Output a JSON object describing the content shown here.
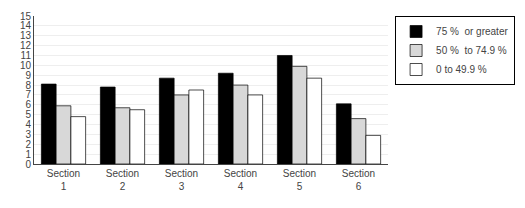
{
  "chart_data": {
    "type": "bar",
    "categories": [
      "Section\n1",
      "Section\n2",
      "Section\n3",
      "Section\n4",
      "Section\n5",
      "Section\n6"
    ],
    "series": [
      {
        "name": "75 %  or greater",
        "color": "#000000",
        "values": [
          8.1,
          7.8,
          8.7,
          9.2,
          11.0,
          6.1
        ]
      },
      {
        "name": "50 %  to 74.9 %",
        "color": "#d8d8d8",
        "values": [
          5.9,
          5.7,
          7.0,
          8.0,
          9.9,
          4.6
        ]
      },
      {
        "name": "0 to 49.9 %",
        "color": "#ffffff",
        "values": [
          4.8,
          5.5,
          7.5,
          7.0,
          8.7,
          2.9
        ]
      }
    ],
    "ylim": [
      0,
      15
    ],
    "yticks": [
      0,
      1,
      2,
      3,
      4,
      5,
      6,
      7,
      8,
      9,
      10,
      11,
      12,
      13,
      14,
      15
    ],
    "grid": true,
    "legend": "upper right"
  }
}
